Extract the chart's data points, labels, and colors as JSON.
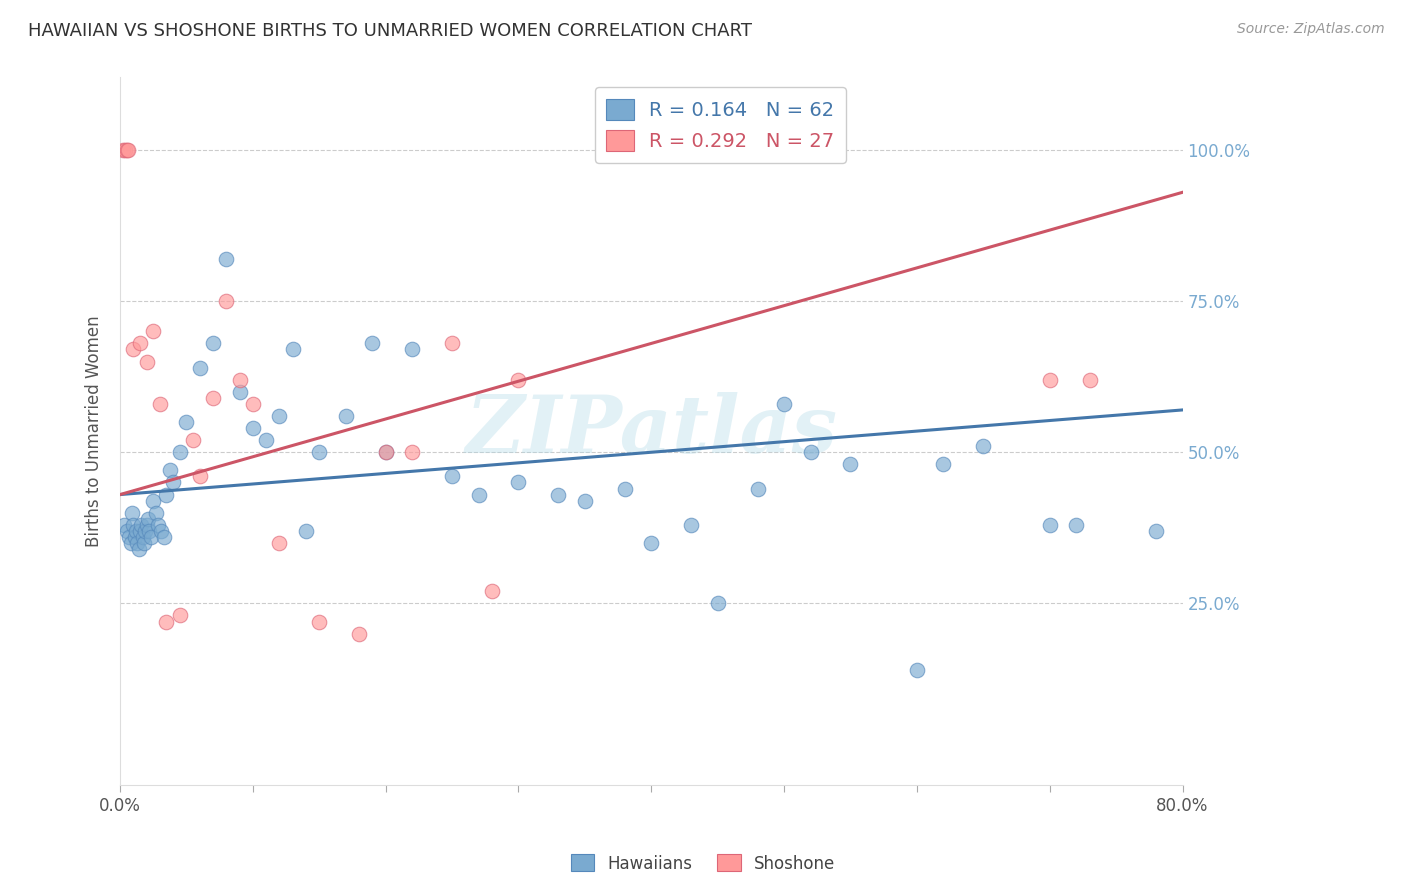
{
  "title": "HAWAIIAN VS SHOSHONE BIRTHS TO UNMARRIED WOMEN CORRELATION CHART",
  "source": "Source: ZipAtlas.com",
  "ylabel": "Births to Unmarried Women",
  "xlim": [
    0.0,
    80.0
  ],
  "ylim": [
    -5.0,
    112.0
  ],
  "ytick_vals": [
    25,
    50,
    75,
    100
  ],
  "ytick_labels": [
    "25.0%",
    "50.0%",
    "75.0%",
    "100.0%"
  ],
  "xtick_vals": [
    0,
    10,
    20,
    30,
    40,
    50,
    60,
    70,
    80
  ],
  "hawaiian_R": 0.164,
  "hawaiian_N": 62,
  "shoshone_R": 0.292,
  "shoshone_N": 27,
  "blue_scatter": "#7AAAD0",
  "blue_edge": "#5588BB",
  "pink_scatter": "#FF9999",
  "pink_edge": "#DD6677",
  "blue_line": "#4477AA",
  "pink_line": "#CC5566",
  "watermark": "ZIPatlas",
  "hawaiians_x": [
    0.3,
    0.5,
    0.7,
    0.8,
    0.9,
    1.0,
    1.1,
    1.2,
    1.3,
    1.4,
    1.5,
    1.6,
    1.7,
    1.8,
    1.9,
    2.0,
    2.1,
    2.2,
    2.3,
    2.5,
    2.7,
    2.9,
    3.1,
    3.3,
    3.5,
    3.8,
    4.0,
    4.5,
    5.0,
    6.0,
    7.0,
    8.0,
    9.0,
    10.0,
    11.0,
    12.0,
    13.0,
    14.0,
    15.0,
    17.0,
    19.0,
    20.0,
    22.0,
    25.0,
    27.0,
    30.0,
    33.0,
    35.0,
    38.0,
    40.0,
    43.0,
    45.0,
    48.0,
    50.0,
    52.0,
    55.0,
    60.0,
    62.0,
    65.0,
    70.0,
    72.0,
    78.0
  ],
  "hawaiians_y": [
    38,
    37,
    36,
    35,
    40,
    38,
    36,
    37,
    35,
    34,
    37,
    38,
    36,
    35,
    37,
    38,
    39,
    37,
    36,
    42,
    40,
    38,
    37,
    36,
    43,
    47,
    45,
    50,
    55,
    64,
    68,
    82,
    60,
    54,
    52,
    56,
    67,
    37,
    50,
    56,
    68,
    50,
    67,
    46,
    43,
    45,
    43,
    42,
    44,
    35,
    38,
    25,
    44,
    58,
    50,
    48,
    14,
    48,
    51,
    38,
    38,
    37
  ],
  "shoshone_x": [
    0.2,
    0.4,
    0.5,
    0.6,
    1.0,
    1.5,
    2.0,
    2.5,
    3.0,
    3.5,
    4.5,
    5.5,
    6.0,
    7.0,
    8.0,
    9.0,
    10.0,
    12.0,
    15.0,
    18.0,
    22.0,
    25.0,
    28.0,
    70.0,
    73.0,
    20.0,
    30.0
  ],
  "shoshone_y": [
    100,
    100,
    100,
    100,
    67,
    68,
    65,
    70,
    58,
    22,
    23,
    52,
    46,
    59,
    75,
    62,
    58,
    35,
    22,
    20,
    50,
    68,
    27,
    62,
    62,
    50,
    62
  ],
  "blue_line_x": [
    0.0,
    80.0
  ],
  "blue_line_y": [
    43.0,
    57.0
  ],
  "pink_line_x": [
    0.0,
    80.0
  ],
  "pink_line_y": [
    43.0,
    93.0
  ]
}
